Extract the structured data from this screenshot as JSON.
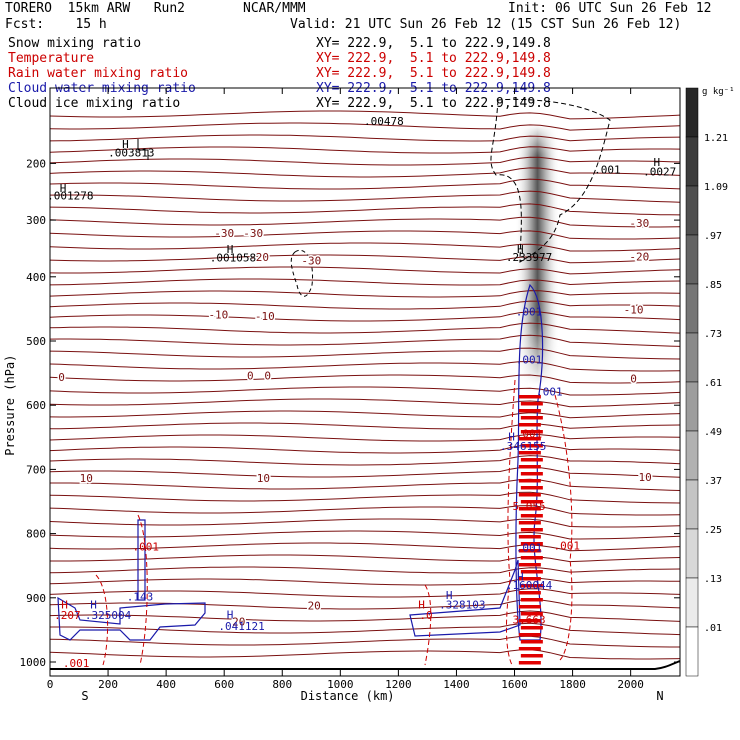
{
  "header": {
    "model": "TORERO  15km ARW   Run2",
    "org": "NCAR/MMM",
    "init": "Init: 06 UTC Sun 26 Feb 12",
    "fcst": "Fcst:    15 h",
    "valid": "Valid: 21 UTC Sun 26 Feb 12 (15 CST Sun 26 Feb 12)"
  },
  "fields": [
    {
      "name": "Snow mixing ratio",
      "xy": "XY= 222.9,  5.1 to 222.9,149.8",
      "color": "#000000"
    },
    {
      "name": "Temperature",
      "xy": "XY= 222.9,  5.1 to 222.9,149.8",
      "color": "#cc0000"
    },
    {
      "name": "Rain water mixing ratio",
      "xy": "XY= 222.9,  5.1 to 222.9,149.8",
      "color": "#cc0000"
    },
    {
      "name": "Cloud water mixing ratio",
      "xy": "XY= 222.9,  5.1 to 222.9,149.8",
      "color": "#1a1aaa"
    },
    {
      "name": "Cloud ice mixing ratio",
      "xy": "XY= 222.9,  5.1 to 222.9,149.8",
      "color": "#000000"
    }
  ],
  "chart_data": {
    "type": "contour cross-section",
    "xlabel": "Distance (km)",
    "ylabel": "Pressure (hPa)",
    "x_ticks": [
      "0",
      "200",
      "400",
      "600",
      "800",
      "1000",
      "1200",
      "1400",
      "1600",
      "1800",
      "2000"
    ],
    "y_ticks": [
      "200",
      "300",
      "400",
      "500",
      "600",
      "700",
      "800",
      "900",
      "1000"
    ],
    "xlim": [
      0,
      2170
    ],
    "ylim": [
      1015,
      100
    ],
    "x_endpoints": {
      "left": "S",
      "right": "N"
    },
    "colorbar": {
      "unit": "g kg⁻¹",
      "levels": [
        "1.21",
        "1.09",
        ".97",
        ".85",
        ".73",
        ".61",
        ".49",
        ".37",
        ".25",
        ".13",
        ".01"
      ]
    },
    "temperature_labels": [
      {
        "text": "-30",
        "x": 600,
        "p": 330
      },
      {
        "text": "-30",
        "x": 700,
        "p": 330
      },
      {
        "text": "-30",
        "x": 900,
        "p": 378
      },
      {
        "text": "-20",
        "x": 720,
        "p": 372
      },
      {
        "text": "-30",
        "x": 2030,
        "p": 312
      },
      {
        "text": "-20",
        "x": 2030,
        "p": 371
      },
      {
        "text": "-10",
        "x": 580,
        "p": 465
      },
      {
        "text": "-10",
        "x": 740,
        "p": 467
      },
      {
        "text": "-10",
        "x": 2010,
        "p": 457
      },
      {
        "text": "0",
        "x": 40,
        "p": 562
      },
      {
        "text": "0",
        "x": 690,
        "p": 560
      },
      {
        "text": "0",
        "x": 750,
        "p": 560
      },
      {
        "text": "0",
        "x": 2010,
        "p": 565
      },
      {
        "text": "10",
        "x": 125,
        "p": 720
      },
      {
        "text": "10",
        "x": 735,
        "p": 720
      },
      {
        "text": "10",
        "x": 2050,
        "p": 718
      },
      {
        "text": "20",
        "x": 650,
        "p": 943
      },
      {
        "text": "20",
        "x": 910,
        "p": 918
      }
    ],
    "annotations": [
      {
        "text": "H",
        "x": 260,
        "p": 173,
        "color": "black"
      },
      {
        "text": ".003813",
        "x": 280,
        "p": 188,
        "color": "black"
      },
      {
        "text": "H",
        "x": 45,
        "p": 250,
        "color": "black"
      },
      {
        "text": ".001278",
        "x": 70,
        "p": 264,
        "color": "black"
      },
      {
        "text": "H",
        "x": 620,
        "p": 358,
        "color": "black"
      },
      {
        "text": ".001058",
        "x": 630,
        "p": 373,
        "color": "black"
      },
      {
        "text": ".00478",
        "x": 1150,
        "p": 132,
        "color": "black"
      },
      {
        "text": "H",
        "x": 1620,
        "p": 358,
        "color": "black"
      },
      {
        "text": ".233977",
        "x": 1650,
        "p": 372,
        "color": "black"
      },
      {
        "text": ".001",
        "x": 1920,
        "p": 218,
        "color": "black"
      },
      {
        "text": "H",
        "x": 2090,
        "p": 205,
        "color": "black"
      },
      {
        "text": ".0027",
        "x": 2100,
        "p": 221,
        "color": "black"
      },
      {
        "text": ".001",
        "x": 1650,
        "p": 460,
        "color": "blue"
      },
      {
        "text": ".001",
        "x": 1650,
        "p": 535,
        "color": "blue"
      },
      {
        "text": ".001",
        "x": 1720,
        "p": 585,
        "color": "blue"
      },
      {
        "text": "H",
        "x": 1590,
        "p": 655,
        "color": "blue"
      },
      {
        "text": ".346155",
        "x": 1630,
        "p": 670,
        "color": "blue"
      },
      {
        "text": ".001",
        "x": 1650,
        "p": 650,
        "color": "red"
      },
      {
        "text": "5.055",
        "x": 1650,
        "p": 763,
        "color": "red"
      },
      {
        "text": ".001",
        "x": 1650,
        "p": 828,
        "color": "blue"
      },
      {
        "text": ".001",
        "x": 1780,
        "p": 825,
        "color": "red"
      },
      {
        "text": "H",
        "x": 1620,
        "p": 873,
        "color": "blue"
      },
      {
        "text": ".160044",
        "x": 1650,
        "p": 886,
        "color": "blue"
      },
      {
        "text": "3.663",
        "x": 1650,
        "p": 940,
        "color": "red"
      },
      {
        "text": "H",
        "x": 1375,
        "p": 902,
        "color": "blue"
      },
      {
        "text": ".328103",
        "x": 1420,
        "p": 917,
        "color": "blue"
      },
      {
        "text": "H",
        "x": 1280,
        "p": 917,
        "color": "red"
      },
      {
        "text": ".0",
        "x": 1295,
        "p": 933,
        "color": "red"
      },
      {
        "text": ".001",
        "x": 330,
        "p": 826,
        "color": "red"
      },
      {
        "text": ".143",
        "x": 310,
        "p": 904,
        "color": "blue"
      },
      {
        "text": "H",
        "x": 50,
        "p": 917,
        "color": "red"
      },
      {
        "text": ".207",
        "x": 60,
        "p": 933,
        "color": "red"
      },
      {
        "text": "H",
        "x": 150,
        "p": 917,
        "color": "blue"
      },
      {
        "text": ".325004",
        "x": 200,
        "p": 933,
        "color": "blue"
      },
      {
        "text": "H",
        "x": 620,
        "p": 932,
        "color": "blue"
      },
      {
        "text": ".041121",
        "x": 660,
        "p": 950,
        "color": "blue"
      },
      {
        "text": ".001",
        "x": 90,
        "p": 1008,
        "color": "red"
      }
    ]
  }
}
